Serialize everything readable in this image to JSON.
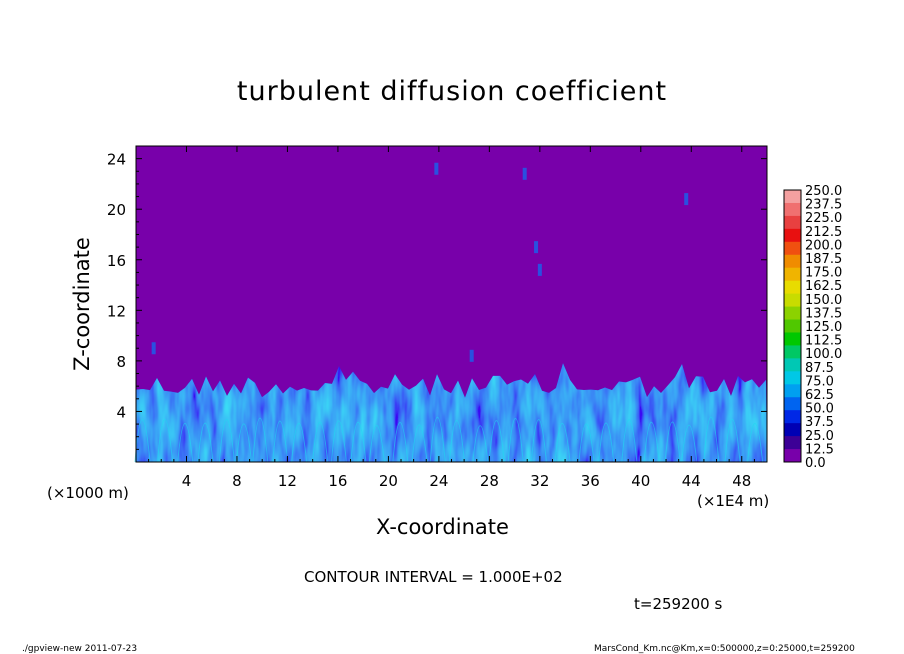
{
  "chart_data": {
    "type": "heatmap",
    "title": "turbulent diffusion coefficient",
    "xlabel": "X-coordinate",
    "ylabel": "Z-coordinate",
    "x_unit_label": "(×1E4 m)",
    "y_unit_label": "(×1000 m)",
    "xlim": [
      0,
      50
    ],
    "ylim": [
      0,
      25
    ],
    "x_ticks": [
      "4",
      "8",
      "12",
      "16",
      "20",
      "24",
      "28",
      "32",
      "36",
      "40",
      "44",
      "48"
    ],
    "x_tick_values": [
      4,
      8,
      12,
      16,
      20,
      24,
      28,
      32,
      36,
      40,
      44,
      48
    ],
    "y_ticks": [
      "4",
      "8",
      "12",
      "16",
      "20",
      "24"
    ],
    "y_tick_values": [
      4,
      8,
      12,
      16,
      20,
      24
    ],
    "contour_interval_text": "CONTOUR INTERVAL = 1.000E+02",
    "time_text": "t=259200 s",
    "colorbar": {
      "labels": [
        "250.0",
        "237.5",
        "225.0",
        "212.5",
        "200.0",
        "187.5",
        "175.0",
        "162.5",
        "150.0",
        "137.5",
        "125.0",
        "112.5",
        "100.0",
        "87.5",
        "75.0",
        "62.5",
        "50.0",
        "37.5",
        "25.0",
        "12.5",
        "0.0"
      ],
      "colors": [
        "#f4a0a0",
        "#f07070",
        "#e84040",
        "#e81010",
        "#f05010",
        "#f08c00",
        "#f0b400",
        "#e8dc00",
        "#c8dc00",
        "#8cd200",
        "#50c800",
        "#00c800",
        "#00c864",
        "#00c8b4",
        "#00c8e6",
        "#00a0f0",
        "#0064f0",
        "#0028e6",
        "#0000b4",
        "#3c0096",
        "#7800aa"
      ]
    },
    "background_color": "#7800aa",
    "turbulent_layer_top_approx": 6.5,
    "max_plume_height_approx": 9.5
  },
  "footer": {
    "left": "./gpview-new   2011-07-23",
    "right": "MarsCond_Km.nc@Km,x=0:500000,z=0:25000,t=259200"
  }
}
